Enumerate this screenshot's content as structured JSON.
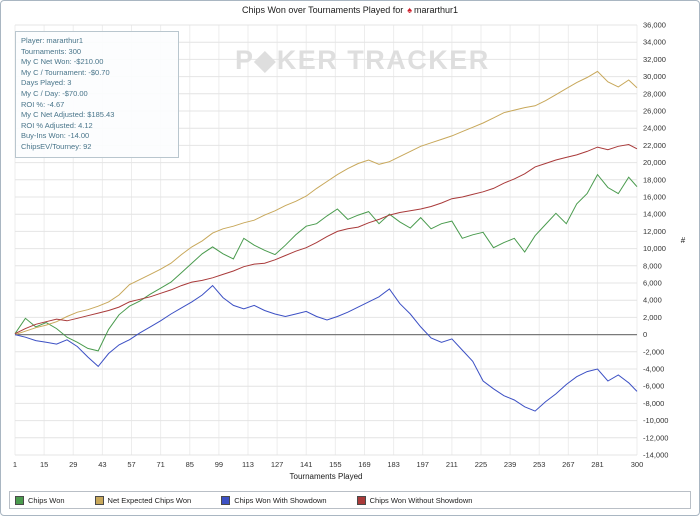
{
  "window": {
    "title_prefix": "Chips Won over Tournaments Played for",
    "title_player": "mararthur1"
  },
  "icons": {
    "pokerstars_spade": "♠"
  },
  "watermark": "P◆KER TRACKER",
  "stats": {
    "lines": [
      "Player: mararthur1",
      "Tournaments: 300",
      "My C Net Won: -$210.00",
      "My C / Tournament: -$0.70",
      "Days Played: 3",
      "My C / Day: -$70.00",
      "ROI %: -4.67",
      "My C Net Adjusted: $185.43",
      "ROI % Adjusted: 4.12",
      "Buy-Ins Won: -14.00",
      "ChipsEV/Tourney: 92"
    ]
  },
  "axes": {
    "x_title": "Tournaments Played",
    "y_title": "#",
    "x_ticks": [
      1,
      15,
      29,
      43,
      57,
      71,
      85,
      99,
      113,
      127,
      141,
      155,
      169,
      183,
      197,
      211,
      225,
      239,
      253,
      267,
      281,
      300
    ],
    "y_step": 2000
  },
  "legend": {
    "items": [
      {
        "label": "Chips Won",
        "color": "#4a9b4e"
      },
      {
        "label": "Net Expected Chips Won",
        "color": "#c8a85b"
      },
      {
        "label": "Chips Won With Showdown",
        "color": "#3c50c4"
      },
      {
        "label": "Chips Won Without Showdown",
        "color": "#a93a3a"
      }
    ]
  },
  "chart_data": {
    "type": "line",
    "title": "Chips Won over Tournaments Played for mararthur1",
    "xlabel": "Tournaments Played",
    "ylabel": "#",
    "xlim": [
      1,
      300
    ],
    "ylim": [
      -14000,
      36000
    ],
    "grid": true,
    "legend_position": "bottom",
    "x": [
      1,
      6,
      11,
      16,
      21,
      26,
      31,
      36,
      41,
      46,
      51,
      56,
      61,
      66,
      71,
      76,
      81,
      86,
      91,
      96,
      101,
      106,
      111,
      116,
      121,
      126,
      131,
      136,
      141,
      146,
      151,
      156,
      161,
      166,
      171,
      176,
      181,
      186,
      191,
      196,
      201,
      206,
      211,
      216,
      221,
      226,
      231,
      236,
      241,
      246,
      251,
      256,
      261,
      266,
      271,
      276,
      281,
      286,
      291,
      296,
      300
    ],
    "series": [
      {
        "name": "Chips Won",
        "color": "#4a9b4e",
        "values": [
          100,
          1900,
          900,
          1400,
          700,
          -300,
          -900,
          -1600,
          -1900,
          600,
          2300,
          3300,
          3900,
          4700,
          5400,
          6100,
          7200,
          8300,
          9400,
          10200,
          9400,
          8800,
          11200,
          10400,
          9800,
          9300,
          10400,
          11600,
          12600,
          12900,
          13800,
          14600,
          13400,
          13900,
          14300,
          12900,
          14000,
          13100,
          12400,
          13600,
          12300,
          12900,
          13200,
          11200,
          11600,
          11900,
          10100,
          10700,
          11200,
          9600,
          11500,
          12800,
          14100,
          12900,
          15200,
          16400,
          18600,
          17100,
          16400,
          18300,
          17200
        ]
      },
      {
        "name": "Net Expected Chips Won",
        "color": "#c8a85b",
        "values": [
          0,
          400,
          800,
          1100,
          1500,
          2100,
          2600,
          2900,
          3300,
          3800,
          4600,
          5800,
          6400,
          7000,
          7600,
          8300,
          9300,
          10200,
          10900,
          11800,
          12300,
          12600,
          13000,
          13300,
          13900,
          14400,
          15000,
          15500,
          16100,
          17000,
          17800,
          18600,
          19300,
          19900,
          20300,
          19800,
          20100,
          20700,
          21300,
          21900,
          22300,
          22700,
          23100,
          23600,
          24100,
          24600,
          25200,
          25800,
          26100,
          26400,
          26600,
          27200,
          27900,
          28600,
          29300,
          29900,
          30600,
          29400,
          28800,
          29600,
          28700
        ]
      },
      {
        "name": "Chips Won With Showdown",
        "color": "#3c50c4",
        "values": [
          0,
          -300,
          -700,
          -900,
          -1100,
          -600,
          -1400,
          -2600,
          -3700,
          -2200,
          -1200,
          -600,
          200,
          900,
          1600,
          2400,
          3100,
          3800,
          4600,
          5700,
          4300,
          3400,
          3000,
          3400,
          2800,
          2400,
          2100,
          2400,
          2700,
          2100,
          1700,
          2100,
          2600,
          3200,
          3800,
          4400,
          5300,
          3600,
          2400,
          900,
          -400,
          -900,
          -500,
          -1800,
          -3100,
          -5400,
          -6300,
          -7100,
          -7600,
          -8400,
          -8900,
          -7800,
          -6900,
          -5800,
          -4900,
          -4300,
          -4000,
          -5400,
          -4700,
          -5600,
          -6600
        ]
      },
      {
        "name": "Chips Won Without Showdown",
        "color": "#a93a3a",
        "values": [
          100,
          700,
          1200,
          1500,
          1800,
          1600,
          1900,
          2200,
          2500,
          2800,
          3200,
          3800,
          4100,
          4400,
          4800,
          5200,
          5700,
          6100,
          6300,
          6600,
          7000,
          7400,
          7900,
          8200,
          8300,
          8700,
          9200,
          9700,
          10100,
          10700,
          11400,
          12000,
          12300,
          12500,
          13000,
          13400,
          13900,
          14200,
          14400,
          14600,
          14900,
          15300,
          15800,
          16000,
          16300,
          16600,
          17000,
          17600,
          18100,
          18700,
          19500,
          19900,
          20300,
          20600,
          20900,
          21300,
          21800,
          21500,
          21900,
          22100,
          21600
        ]
      }
    ]
  }
}
